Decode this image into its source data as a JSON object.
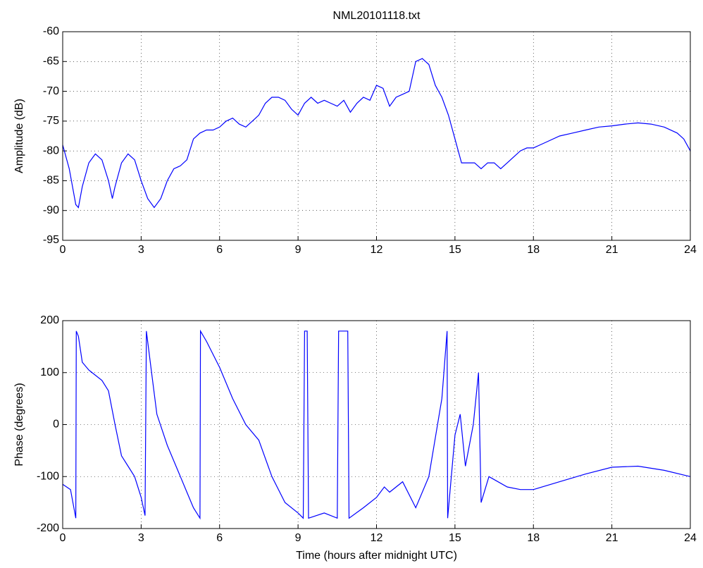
{
  "chart_data": [
    {
      "type": "line",
      "title": "NML20101118.txt",
      "ylabel": "Amplitude (dB)",
      "x": [
        0,
        0.25,
        0.5,
        0.6,
        0.75,
        1,
        1.25,
        1.5,
        1.75,
        1.9,
        2,
        2.25,
        2.5,
        2.75,
        3,
        3.25,
        3.5,
        3.75,
        4,
        4.25,
        4.5,
        4.75,
        5,
        5.25,
        5.5,
        5.75,
        6,
        6.25,
        6.5,
        6.75,
        7,
        7.25,
        7.5,
        7.75,
        8,
        8.25,
        8.5,
        8.75,
        9,
        9.25,
        9.5,
        9.75,
        10,
        10.25,
        10.5,
        10.75,
        11,
        11.25,
        11.5,
        11.75,
        12,
        12.25,
        12.5,
        12.75,
        13,
        13.25,
        13.5,
        13.75,
        14,
        14.25,
        14.5,
        14.75,
        15,
        15.25,
        15.5,
        15.75,
        16,
        16.25,
        16.5,
        16.75,
        17,
        17.25,
        17.5,
        17.75,
        18,
        18.5,
        19,
        19.5,
        20,
        20.5,
        21,
        21.5,
        22,
        22.5,
        23,
        23.5,
        23.75,
        24
      ],
      "series": [
        {
          "color": "#0000ff",
          "values": [
            -79,
            -83,
            -89,
            -89.5,
            -86,
            -82,
            -80.5,
            -81.5,
            -85,
            -88,
            -86,
            -82,
            -80.5,
            -81.5,
            -85,
            -88,
            -89.5,
            -88,
            -85,
            -83,
            -82.5,
            -81.5,
            -78,
            -77,
            -76.5,
            -76.5,
            -76,
            -75,
            -74.5,
            -75.5,
            -76,
            -75,
            -74,
            -72,
            -71,
            -71,
            -71.5,
            -73,
            -74,
            -72,
            -71,
            -72,
            -71.5,
            -72,
            -72.5,
            -71.5,
            -73.5,
            -72,
            -71,
            -71.5,
            -69,
            -69.5,
            -72.5,
            -71,
            -70.5,
            -70,
            -65,
            -64.5,
            -65.5,
            -69,
            -71,
            -74,
            -78,
            -82,
            -82,
            -82,
            -83,
            -82,
            -82,
            -83,
            -82,
            -81,
            -80,
            -79.5,
            -79.5,
            -78.5,
            -77.5,
            -77,
            -76.5,
            -76,
            -75.8,
            -75.5,
            -75.3,
            -75.5,
            -76,
            -77,
            -78,
            -80
          ]
        }
      ],
      "xlim": [
        0,
        24
      ],
      "ylim": [
        -95,
        -60
      ],
      "xticks": [
        0,
        3,
        6,
        9,
        12,
        15,
        18,
        21,
        24
      ],
      "yticks": [
        -95,
        -90,
        -85,
        -80,
        -75,
        -70,
        -65,
        -60
      ],
      "grid": true
    },
    {
      "type": "line",
      "xlabel": "Time (hours after midnight UTC)",
      "ylabel": "Phase (degrees)",
      "x": [
        0,
        0.3,
        0.5,
        0.52,
        0.6,
        0.75,
        1,
        1.5,
        1.75,
        2,
        2.25,
        2.5,
        2.75,
        3,
        3.15,
        3.2,
        3.4,
        3.6,
        4,
        4.5,
        4.75,
        5,
        5.25,
        5.27,
        5.5,
        6,
        6.5,
        7,
        7.5,
        8,
        8.5,
        9,
        9.2,
        9.25,
        9.35,
        9.4,
        10,
        10.5,
        10.55,
        10.9,
        10.95,
        11.5,
        12,
        12.3,
        12.5,
        13,
        13.5,
        14,
        14.5,
        14.7,
        14.72,
        15,
        15.2,
        15.4,
        15.7,
        15.9,
        16,
        16.3,
        17,
        17.5,
        18,
        19,
        20,
        21,
        22,
        23,
        24
      ],
      "series": [
        {
          "color": "#0000ff",
          "values": [
            -115,
            -125,
            -180,
            180,
            170,
            120,
            105,
            85,
            65,
            0,
            -60,
            -80,
            -100,
            -140,
            -175,
            180,
            100,
            20,
            -40,
            -100,
            -130,
            -160,
            -180,
            180,
            160,
            110,
            50,
            0,
            -30,
            -100,
            -150,
            -170,
            -180,
            180,
            180,
            -180,
            -170,
            -180,
            180,
            180,
            -180,
            -160,
            -140,
            -120,
            -130,
            -110,
            -160,
            -100,
            50,
            180,
            -180,
            -20,
            20,
            -80,
            0,
            100,
            -150,
            -100,
            -120,
            -125,
            -125,
            -110,
            -95,
            -82,
            -80,
            -88,
            -100
          ]
        }
      ],
      "xlim": [
        0,
        24
      ],
      "ylim": [
        -200,
        200
      ],
      "xticks": [
        0,
        3,
        6,
        9,
        12,
        15,
        18,
        21,
        24
      ],
      "yticks": [
        -200,
        -100,
        0,
        100,
        200
      ],
      "grid": true
    }
  ]
}
